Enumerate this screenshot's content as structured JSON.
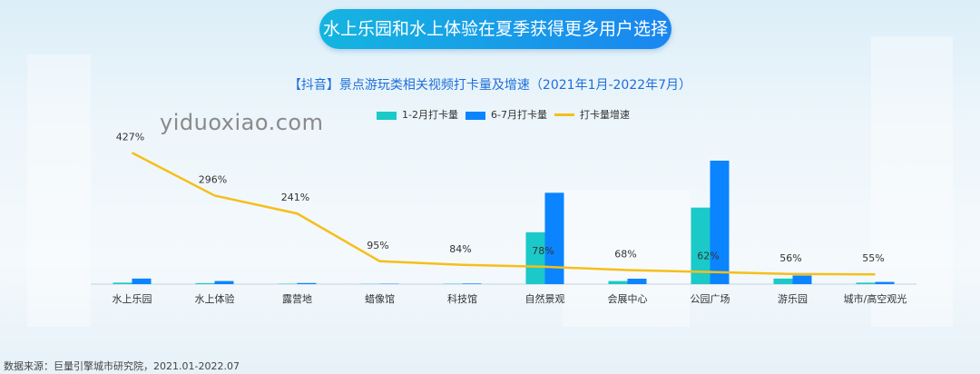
{
  "headline": "水上乐园和水上体验在夏季获得更多用户选择",
  "watermark": "yiduoxiao.com",
  "source": "数据来源：巨量引擎城市研究院，2021.01-2022.07",
  "colors": {
    "series1": "#1bc9c9",
    "series2": "#0a84ff",
    "growth": "#f5bf1a"
  },
  "chart_data": {
    "type": "bar",
    "title": "【抖音】景点游玩类相关视频打卡量及增速（2021年1月-2022年7月）",
    "categories": [
      "水上乐园",
      "水上体验",
      "露营地",
      "蜡像馆",
      "科技馆",
      "自然景观",
      "会展中心",
      "公园广场",
      "游乐园",
      "城市/高空观光"
    ],
    "series": [
      {
        "name": "1-2月打卡量",
        "values": [
          1.2,
          0.8,
          0.3,
          0.2,
          0.3,
          42,
          2.5,
          62,
          4.5,
          1.2
        ]
      },
      {
        "name": "6-7月打卡量",
        "values": [
          4.5,
          2.5,
          0.9,
          0.3,
          0.5,
          74,
          4.4,
          100,
          7.0,
          1.8
        ]
      }
    ],
    "line_series": {
      "name": "打卡量增速",
      "values": [
        427,
        296,
        241,
        95,
        84,
        78,
        68,
        62,
        56,
        55
      ],
      "labels": [
        "427%",
        "296%",
        "241%",
        "95%",
        "84%",
        "78%",
        "68%",
        "62%",
        "56%",
        "55%"
      ]
    },
    "grid": false,
    "legend": "top"
  }
}
